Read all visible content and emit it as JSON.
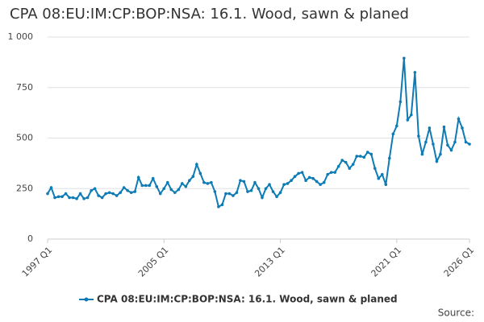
{
  "chart_data": {
    "type": "line",
    "title": "CPA 08:EU:IM:CP:BOP:NSA: 16.1. Wood, sawn & planed",
    "source": "Source:",
    "categories": [
      "1997 Q1",
      null,
      null,
      null,
      null,
      null,
      null,
      null,
      null,
      null,
      null,
      null,
      null,
      null,
      null,
      null,
      null,
      null,
      null,
      null,
      null,
      null,
      null,
      null,
      null,
      null,
      null,
      null,
      null,
      null,
      null,
      null,
      "2005 Q1",
      null,
      null,
      null,
      null,
      null,
      null,
      null,
      null,
      null,
      null,
      null,
      null,
      null,
      null,
      null,
      null,
      null,
      null,
      null,
      null,
      null,
      null,
      null,
      null,
      null,
      null,
      null,
      null,
      null,
      null,
      null,
      "2013 Q1",
      null,
      null,
      null,
      null,
      null,
      null,
      null,
      null,
      null,
      null,
      null,
      null,
      null,
      null,
      null,
      null,
      null,
      null,
      null,
      null,
      null,
      null,
      null,
      null,
      null,
      null,
      null,
      null,
      null,
      null,
      null,
      "2021 Q1",
      null,
      null,
      null,
      null,
      null,
      null,
      null,
      null,
      null,
      null,
      null,
      null,
      null,
      null,
      null,
      null,
      null,
      null,
      null,
      "2026 Q1"
    ],
    "series": [
      {
        "name": "CPA 08:EU:IM:CP:BOP:NSA: 16.1. Wood, sawn & planed",
        "color": "#0e7bb5",
        "values": [
          225,
          255,
          205,
          210,
          210,
          225,
          205,
          205,
          200,
          225,
          200,
          205,
          240,
          250,
          215,
          205,
          225,
          230,
          225,
          215,
          230,
          255,
          240,
          230,
          235,
          305,
          265,
          265,
          265,
          300,
          260,
          225,
          250,
          280,
          245,
          230,
          245,
          275,
          260,
          290,
          310,
          370,
          325,
          280,
          275,
          280,
          235,
          160,
          170,
          225,
          225,
          215,
          230,
          290,
          285,
          235,
          240,
          280,
          250,
          205,
          250,
          270,
          235,
          210,
          230,
          270,
          275,
          290,
          310,
          325,
          330,
          290,
          305,
          300,
          285,
          270,
          280,
          320,
          330,
          330,
          360,
          390,
          380,
          350,
          370,
          410,
          410,
          405,
          430,
          420,
          350,
          300,
          320,
          270,
          400,
          520,
          560,
          680,
          895,
          590,
          615,
          825,
          510,
          420,
          480,
          550,
          470,
          385,
          420,
          555,
          465,
          440,
          480,
          595,
          550,
          480,
          470
        ]
      }
    ],
    "ylim": [
      0,
      1000
    ],
    "yticks": [
      0,
      250,
      500,
      750,
      {
        "value": 1000,
        "label": "1 000"
      }
    ],
    "grid": true
  }
}
